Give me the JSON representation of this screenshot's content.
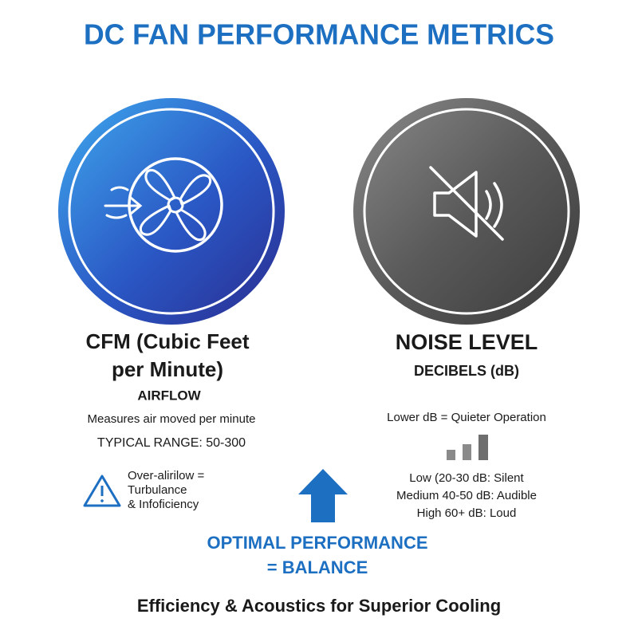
{
  "title": "DC FAN PERFORMANCE METRICS",
  "airflow": {
    "heading_lines": [
      "CFM (Cubic Feet",
      "per Minute)"
    ],
    "label": "AIRFLOW",
    "description": "Measures air moved per minute",
    "typical_range": "TYPICAL RANGE: 50-300",
    "warning_lines": [
      "Over-alirilow =",
      "Turbulance",
      "& Infoficiency"
    ]
  },
  "noise": {
    "heading": "NOISE LEVEL",
    "unit": "DECIBELS (dB)",
    "description": "Lower dB = Quieter Operation",
    "levels": [
      "Low (20-30 dB: Silent",
      "Medium 40-50 dB: Audible",
      "High 60+ dB: Loud"
    ]
  },
  "balance": {
    "lines": [
      "OPTIMAL PERFORMANCE",
      "= BALANCE"
    ]
  },
  "footer": "Efficiency & Acoustics for Superior Cooling"
}
